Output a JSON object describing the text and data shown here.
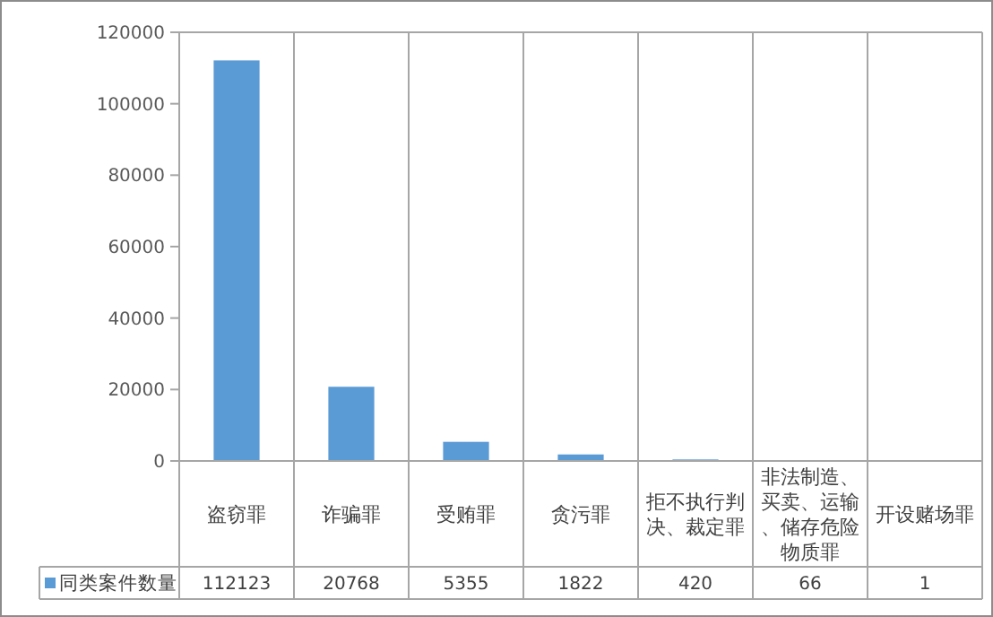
{
  "chart_data": {
    "type": "bar",
    "categories": [
      "盗窃罪",
      "诈骗罪",
      "受贿罪",
      "贪污罪",
      "拒不执行判决、裁定罪",
      "非法制造、买卖、运输、储存危险物质罪",
      "开设赌场罪"
    ],
    "series": [
      {
        "name": "同类案件数量",
        "color": "#5b9bd5",
        "values": [
          112123,
          20768,
          5355,
          1822,
          420,
          66,
          1
        ]
      }
    ],
    "ylim": [
      0,
      120000
    ],
    "yticks": [
      0,
      20000,
      40000,
      60000,
      80000,
      100000,
      120000
    ],
    "data_labels": true,
    "grid": false,
    "legend": "bottom left"
  }
}
